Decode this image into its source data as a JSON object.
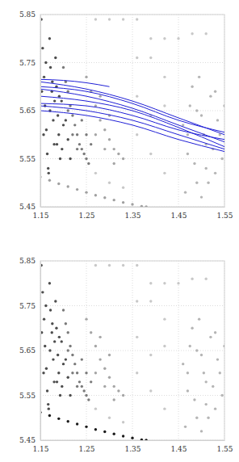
{
  "chart_data": [
    {
      "type": "scatter",
      "xlim": [
        1.15,
        1.55
      ],
      "ylim": [
        5.45,
        5.85
      ],
      "xticks": [
        1.15,
        1.25,
        1.35,
        1.45,
        1.55
      ],
      "yticks": [
        5.45,
        5.55,
        5.65,
        5.75,
        5.85
      ],
      "grid": true,
      "series": [
        {
          "color": "#c8c8c8",
          "x": [
            1.27,
            1.3,
            1.33,
            1.36,
            1.39,
            1.42,
            1.27,
            1.3,
            1.33,
            1.36,
            1.39,
            1.42,
            1.36,
            1.39,
            1.42,
            1.36,
            1.39,
            1.42,
            1.45,
            1.48,
            1.51
          ],
          "values": [
            5.84,
            5.84,
            5.84,
            5.84,
            5.8,
            5.8,
            5.52,
            5.5,
            5.49,
            5.76,
            5.76,
            5.72,
            5.6,
            5.56,
            5.52,
            5.68,
            5.64,
            5.66,
            5.8,
            5.81,
            5.81
          ]
        },
        {
          "color": "#b5b5b5",
          "x": [
            1.46,
            1.47,
            1.48,
            1.49,
            1.5,
            1.51,
            1.52,
            1.53,
            1.54,
            1.55,
            1.465,
            1.475,
            1.485,
            1.495,
            1.505,
            1.515,
            1.525,
            1.535,
            1.545,
            1.47,
            1.49,
            1.51,
            1.53,
            1.5
          ],
          "values": [
            5.62,
            5.56,
            5.7,
            5.5,
            5.64,
            5.58,
            5.68,
            5.52,
            5.6,
            5.66,
            5.48,
            5.66,
            5.54,
            5.72,
            5.6,
            5.5,
            5.57,
            5.63,
            5.55,
            5.6,
            5.65,
            5.53,
            5.69,
            5.47
          ]
        },
        {
          "color": "#a5a5a5",
          "x": [
            1.25,
            1.26,
            1.27,
            1.28,
            1.29,
            1.3,
            1.31,
            1.32,
            1.33,
            1.27,
            1.29,
            1.31,
            1.28,
            1.3
          ],
          "values": [
            5.72,
            5.69,
            5.66,
            5.63,
            5.61,
            5.59,
            5.57,
            5.56,
            5.55,
            5.6,
            5.57,
            5.54,
            5.68,
            5.64
          ]
        },
        {
          "color": "#7a7a7a",
          "x": [
            1.2,
            1.205,
            1.21,
            1.215,
            1.22,
            1.225,
            1.23,
            1.235,
            1.24,
            1.245,
            1.25,
            1.255,
            1.21,
            1.22,
            1.23,
            1.24,
            1.25,
            1.26
          ],
          "values": [
            5.74,
            5.71,
            5.69,
            5.66,
            5.64,
            5.62,
            5.6,
            5.58,
            5.57,
            5.56,
            5.55,
            5.54,
            5.65,
            5.6,
            5.57,
            5.63,
            5.6,
            5.58
          ]
        },
        {
          "color": "#4d4d4d",
          "x": [
            1.152,
            1.155,
            1.158,
            1.16,
            1.163,
            1.165,
            1.168,
            1.17,
            1.172,
            1.175,
            1.178,
            1.18,
            1.183,
            1.185,
            1.188,
            1.19,
            1.193,
            1.196,
            1.2,
            1.153,
            1.157,
            1.162,
            1.167,
            1.171,
            1.176,
            1.181,
            1.186,
            1.191,
            1.197,
            1.205,
            1.21,
            1.215
          ],
          "values": [
            5.84,
            5.78,
            5.72,
            5.66,
            5.61,
            5.56,
            5.52,
            5.8,
            5.74,
            5.69,
            5.63,
            5.58,
            5.76,
            5.7,
            5.64,
            5.6,
            5.55,
            5.67,
            5.62,
            5.69,
            5.6,
            5.75,
            5.53,
            5.65,
            5.71,
            5.67,
            5.58,
            5.68,
            5.57,
            5.63,
            5.59,
            5.55
          ]
        },
        {
          "color": "#a0a0a0",
          "x": [
            1.15,
            1.17,
            1.19,
            1.21,
            1.23,
            1.25,
            1.27,
            1.29,
            1.31,
            1.33,
            1.35,
            1.37,
            1.38
          ],
          "values": [
            5.512,
            5.505,
            5.498,
            5.492,
            5.486,
            5.48,
            5.474,
            5.469,
            5.464,
            5.459,
            5.455,
            5.451,
            5.45
          ]
        },
        {
          "type": "line",
          "color": "#1f1fd6",
          "x": [
            1.15,
            1.25,
            1.35,
            1.45,
            1.55
          ],
          "values": [
            5.71,
            5.695,
            5.67,
            5.635,
            5.6
          ]
        },
        {
          "type": "line",
          "color": "#1f1fd6",
          "x": [
            1.15,
            1.25,
            1.35,
            1.45,
            1.55
          ],
          "values": [
            5.695,
            5.68,
            5.655,
            5.62,
            5.585
          ]
        },
        {
          "type": "line",
          "color": "#1f1fd6",
          "x": [
            1.15,
            1.25,
            1.35,
            1.45,
            1.55
          ],
          "values": [
            5.68,
            5.67,
            5.65,
            5.615,
            5.575
          ]
        },
        {
          "type": "line",
          "color": "#1f1fd6",
          "x": [
            1.15,
            1.25,
            1.35,
            1.45,
            1.55
          ],
          "values": [
            5.665,
            5.66,
            5.64,
            5.61,
            5.59
          ]
        },
        {
          "type": "line",
          "color": "#1f1fd6",
          "x": [
            1.15,
            1.25,
            1.35,
            1.45,
            1.55
          ],
          "values": [
            5.66,
            5.65,
            5.63,
            5.6,
            5.57
          ]
        },
        {
          "type": "line",
          "color": "#1f1fd6",
          "x": [
            1.15,
            1.25,
            1.35,
            1.45,
            1.55
          ],
          "values": [
            5.65,
            5.64,
            5.62,
            5.59,
            5.565
          ]
        },
        {
          "type": "line",
          "color": "#1f1fd6",
          "x": [
            1.15,
            1.25,
            1.35,
            1.45,
            1.55
          ],
          "values": [
            5.7,
            5.69,
            5.665,
            5.63,
            5.605
          ]
        },
        {
          "type": "line",
          "color": "#1f1fd6",
          "x": [
            1.15,
            1.2,
            1.25,
            1.3
          ],
          "values": [
            5.715,
            5.713,
            5.708,
            5.7
          ]
        }
      ]
    },
    {
      "type": "scatter",
      "xlim": [
        1.15,
        1.55
      ],
      "ylim": [
        5.45,
        5.85
      ],
      "xticks": [
        1.15,
        1.25,
        1.35,
        1.45,
        1.55
      ],
      "yticks": [
        5.45,
        5.55,
        5.65,
        5.75,
        5.85
      ],
      "grid": true,
      "series": [
        {
          "color": "#c8c8c8",
          "x": [
            1.27,
            1.3,
            1.33,
            1.36,
            1.39,
            1.42,
            1.27,
            1.3,
            1.33,
            1.36,
            1.39,
            1.42,
            1.36,
            1.39,
            1.42,
            1.36,
            1.39,
            1.42,
            1.45,
            1.48,
            1.51
          ],
          "values": [
            5.84,
            5.84,
            5.84,
            5.84,
            5.8,
            5.8,
            5.52,
            5.5,
            5.49,
            5.76,
            5.76,
            5.72,
            5.6,
            5.56,
            5.52,
            5.68,
            5.64,
            5.66,
            5.8,
            5.81,
            5.81
          ]
        },
        {
          "color": "#b5b5b5",
          "x": [
            1.46,
            1.47,
            1.48,
            1.49,
            1.5,
            1.51,
            1.52,
            1.53,
            1.54,
            1.55,
            1.465,
            1.475,
            1.485,
            1.495,
            1.505,
            1.515,
            1.525,
            1.535,
            1.545,
            1.47,
            1.49,
            1.51,
            1.53,
            1.5
          ],
          "values": [
            5.62,
            5.56,
            5.7,
            5.5,
            5.64,
            5.58,
            5.68,
            5.52,
            5.6,
            5.66,
            5.48,
            5.66,
            5.54,
            5.72,
            5.6,
            5.5,
            5.57,
            5.63,
            5.55,
            5.6,
            5.65,
            5.53,
            5.69,
            5.47
          ]
        },
        {
          "color": "#a5a5a5",
          "x": [
            1.25,
            1.26,
            1.27,
            1.28,
            1.29,
            1.3,
            1.31,
            1.32,
            1.33,
            1.27,
            1.29,
            1.31,
            1.28,
            1.3
          ],
          "values": [
            5.72,
            5.69,
            5.66,
            5.63,
            5.61,
            5.59,
            5.57,
            5.56,
            5.55,
            5.6,
            5.57,
            5.54,
            5.68,
            5.64
          ]
        },
        {
          "color": "#7a7a7a",
          "x": [
            1.2,
            1.205,
            1.21,
            1.215,
            1.22,
            1.225,
            1.23,
            1.235,
            1.24,
            1.245,
            1.25,
            1.255,
            1.21,
            1.22,
            1.23,
            1.24,
            1.25,
            1.26
          ],
          "values": [
            5.74,
            5.71,
            5.69,
            5.66,
            5.64,
            5.62,
            5.6,
            5.58,
            5.57,
            5.56,
            5.55,
            5.54,
            5.65,
            5.6,
            5.57,
            5.63,
            5.6,
            5.58
          ]
        },
        {
          "color": "#4d4d4d",
          "x": [
            1.152,
            1.155,
            1.158,
            1.16,
            1.163,
            1.165,
            1.168,
            1.17,
            1.172,
            1.175,
            1.178,
            1.18,
            1.183,
            1.185,
            1.188,
            1.19,
            1.193,
            1.196,
            1.2,
            1.153,
            1.157,
            1.162,
            1.167,
            1.171,
            1.176,
            1.181,
            1.186,
            1.191,
            1.197,
            1.205,
            1.21,
            1.215
          ],
          "values": [
            5.84,
            5.78,
            5.72,
            5.66,
            5.61,
            5.56,
            5.52,
            5.8,
            5.74,
            5.69,
            5.63,
            5.58,
            5.76,
            5.7,
            5.64,
            5.6,
            5.55,
            5.67,
            5.62,
            5.69,
            5.6,
            5.75,
            5.53,
            5.65,
            5.71,
            5.67,
            5.58,
            5.68,
            5.57,
            5.63,
            5.59,
            5.55
          ]
        },
        {
          "color": "#1a1a1a",
          "x": [
            1.15,
            1.17,
            1.19,
            1.21,
            1.23,
            1.25,
            1.27,
            1.29,
            1.31,
            1.33,
            1.35,
            1.37,
            1.38
          ],
          "values": [
            5.512,
            5.505,
            5.498,
            5.492,
            5.486,
            5.48,
            5.474,
            5.469,
            5.464,
            5.459,
            5.455,
            5.451,
            5.45
          ]
        }
      ]
    }
  ]
}
